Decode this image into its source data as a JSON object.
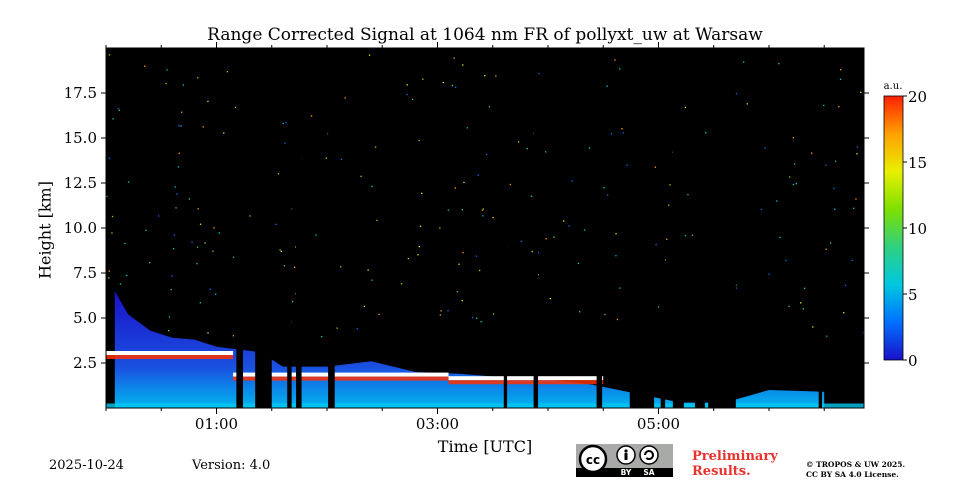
{
  "chart_data": {
    "type": "heatmap",
    "title": "Range Corrected Signal at 1064 nm FR of pollyxt_uw at Warsaw",
    "xlabel": "Time [UTC]",
    "ylabel": "Height [km]",
    "xlim_hours": [
      0.0,
      6.86
    ],
    "ylim_km": [
      0.0,
      20.0
    ],
    "xticks": [
      {
        "value": 1.0,
        "label": "01:00"
      },
      {
        "value": 3.0,
        "label": "03:00"
      },
      {
        "value": 5.0,
        "label": "05:00"
      }
    ],
    "yticks": [
      {
        "value": 2.5,
        "label": "2.5"
      },
      {
        "value": 5.0,
        "label": "5.0"
      },
      {
        "value": 7.5,
        "label": "7.5"
      },
      {
        "value": 10.0,
        "label": "10.0"
      },
      {
        "value": 12.5,
        "label": "12.5"
      },
      {
        "value": 15.0,
        "label": "15.0"
      },
      {
        "value": 17.5,
        "label": "17.5"
      }
    ],
    "colorbar": {
      "unit_label": "a.u.",
      "range": [
        0,
        20
      ],
      "ticks": [
        {
          "value": 0,
          "label": "0"
        },
        {
          "value": 5,
          "label": "5"
        },
        {
          "value": 10,
          "label": "10"
        },
        {
          "value": 15,
          "label": "15"
        },
        {
          "value": 20,
          "label": "20"
        }
      ],
      "colormap": [
        "#1a10c8",
        "#0070ff",
        "#00c8e0",
        "#30d080",
        "#7ee000",
        "#e8f000",
        "#ffa000",
        "#ff2000"
      ]
    },
    "background_color": "#000000",
    "aerosol_layer_top_km": [
      {
        "t": 0.08,
        "h": 6.5
      },
      {
        "t": 0.2,
        "h": 5.2
      },
      {
        "t": 0.4,
        "h": 4.3
      },
      {
        "t": 0.6,
        "h": 3.9
      },
      {
        "t": 0.8,
        "h": 3.8
      },
      {
        "t": 1.0,
        "h": 3.4
      },
      {
        "t": 1.4,
        "h": 3.1
      },
      {
        "t": 1.6,
        "h": 2.3
      },
      {
        "t": 2.0,
        "h": 2.3
      },
      {
        "t": 2.4,
        "h": 2.6
      },
      {
        "t": 2.8,
        "h": 2.0
      },
      {
        "t": 3.2,
        "h": 1.9
      },
      {
        "t": 3.6,
        "h": 1.7
      },
      {
        "t": 4.0,
        "h": 1.6
      },
      {
        "t": 4.4,
        "h": 1.3
      },
      {
        "t": 4.8,
        "h": 0.8
      },
      {
        "t": 5.2,
        "h": 0.3
      },
      {
        "t": 5.6,
        "h": 0.3
      },
      {
        "t": 6.0,
        "h": 1.0
      },
      {
        "t": 6.5,
        "h": 0.9
      }
    ],
    "cloud_layers_km": [
      {
        "t_start": 0.0,
        "t_end": 1.15,
        "h": 3.0
      },
      {
        "t_start": 1.15,
        "t_end": 2.05,
        "h": 1.8
      },
      {
        "t_start": 2.05,
        "t_end": 3.1,
        "h": 1.8
      },
      {
        "t_start": 3.1,
        "t_end": 4.5,
        "h": 1.6
      }
    ],
    "no_data_gaps_hours": [
      [
        1.18,
        1.24
      ],
      [
        1.35,
        1.5
      ],
      [
        1.64,
        1.68
      ],
      [
        1.72,
        1.77
      ],
      [
        2.01,
        2.07
      ],
      [
        3.6,
        3.63
      ],
      [
        3.87,
        3.91
      ],
      [
        4.44,
        4.49
      ],
      [
        4.74,
        4.96
      ],
      [
        5.02,
        5.06
      ],
      [
        5.13,
        5.23
      ],
      [
        5.33,
        5.42
      ],
      [
        5.45,
        5.7
      ],
      [
        6.45,
        6.48
      ]
    ]
  },
  "footer": {
    "date": "2025-10-24",
    "version": "Version: 4.0",
    "preliminary_line1": "Preliminary",
    "preliminary_line2": "Results.",
    "copyright_line1": "© TROPOS & UW 2025.",
    "copyright_line2": "CC BY SA 4.0 License.",
    "license_badge": {
      "cc": "cc",
      "by": "BY",
      "sa": "SA"
    }
  }
}
